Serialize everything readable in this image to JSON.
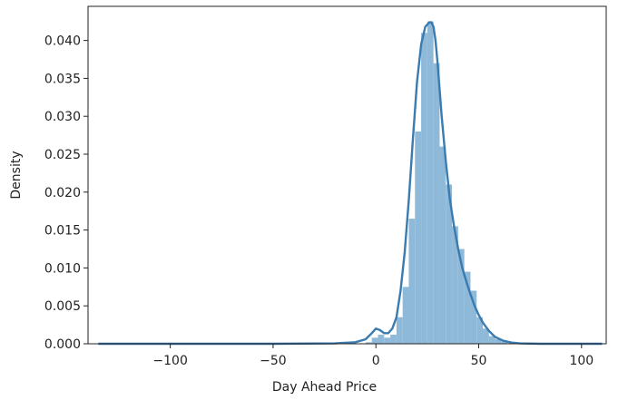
{
  "chart_data": {
    "type": "histogram_kde",
    "title": "",
    "xlabel": "Day Ahead Price",
    "ylabel": "Density",
    "xlim": [
      -140,
      112
    ],
    "ylim": [
      0,
      0.0445
    ],
    "x_ticks": [
      -100,
      -50,
      0,
      50,
      100
    ],
    "x_tick_labels": [
      "−100",
      "−50",
      "0",
      "50",
      "100"
    ],
    "y_ticks": [
      0,
      0.005,
      0.01,
      0.015,
      0.02,
      0.025,
      0.03,
      0.035,
      0.04
    ],
    "y_tick_labels": [
      "0.000",
      "0.005",
      "0.010",
      "0.015",
      "0.020",
      "0.025",
      "0.030",
      "0.035",
      "0.040"
    ],
    "grid": false,
    "colors": {
      "bars": "#8fb9d9",
      "kde": "#3a7bb0",
      "axis": "#222222"
    },
    "histogram": {
      "bin_width": 3,
      "bins": [
        {
          "x0": -5,
          "density": 0.0002
        },
        {
          "x0": -2,
          "density": 0.0008
        },
        {
          "x0": 1,
          "density": 0.0012
        },
        {
          "x0": 4,
          "density": 0.0008
        },
        {
          "x0": 7,
          "density": 0.0012
        },
        {
          "x0": 10,
          "density": 0.0035
        },
        {
          "x0": 13,
          "density": 0.0075
        },
        {
          "x0": 16,
          "density": 0.0165
        },
        {
          "x0": 19,
          "density": 0.028
        },
        {
          "x0": 22,
          "density": 0.041
        },
        {
          "x0": 25,
          "density": 0.0425
        },
        {
          "x0": 28,
          "density": 0.037
        },
        {
          "x0": 31,
          "density": 0.026
        },
        {
          "x0": 34,
          "density": 0.021
        },
        {
          "x0": 37,
          "density": 0.0155
        },
        {
          "x0": 40,
          "density": 0.0125
        },
        {
          "x0": 43,
          "density": 0.0095
        },
        {
          "x0": 46,
          "density": 0.007
        },
        {
          "x0": 49,
          "density": 0.0035
        },
        {
          "x0": 52,
          "density": 0.002
        },
        {
          "x0": 55,
          "density": 0.001
        },
        {
          "x0": 58,
          "density": 0.0006
        },
        {
          "x0": 61,
          "density": 0.0003
        }
      ]
    },
    "kde": {
      "x": [
        -135,
        -100,
        -50,
        -20,
        -10,
        -5,
        -2,
        0,
        2,
        4,
        6,
        8,
        10,
        12,
        14,
        16,
        18,
        20,
        22,
        24,
        26,
        27,
        28,
        29,
        30,
        32,
        34,
        36,
        38,
        40,
        42,
        44,
        46,
        48,
        50,
        52,
        55,
        58,
        62,
        66,
        70,
        80,
        90,
        100,
        110
      ],
      "y": [
        0,
        0,
        0,
        5e-05,
        0.0002,
        0.0006,
        0.0014,
        0.002,
        0.0018,
        0.0014,
        0.0014,
        0.002,
        0.0035,
        0.007,
        0.012,
        0.019,
        0.027,
        0.0345,
        0.0395,
        0.0418,
        0.0424,
        0.0424,
        0.0418,
        0.04,
        0.037,
        0.03,
        0.024,
        0.019,
        0.0155,
        0.0125,
        0.01,
        0.0082,
        0.0065,
        0.005,
        0.0038,
        0.0028,
        0.0017,
        0.0009,
        0.0004,
        0.00015,
        5e-05,
        0,
        0,
        0,
        0
      ]
    }
  }
}
